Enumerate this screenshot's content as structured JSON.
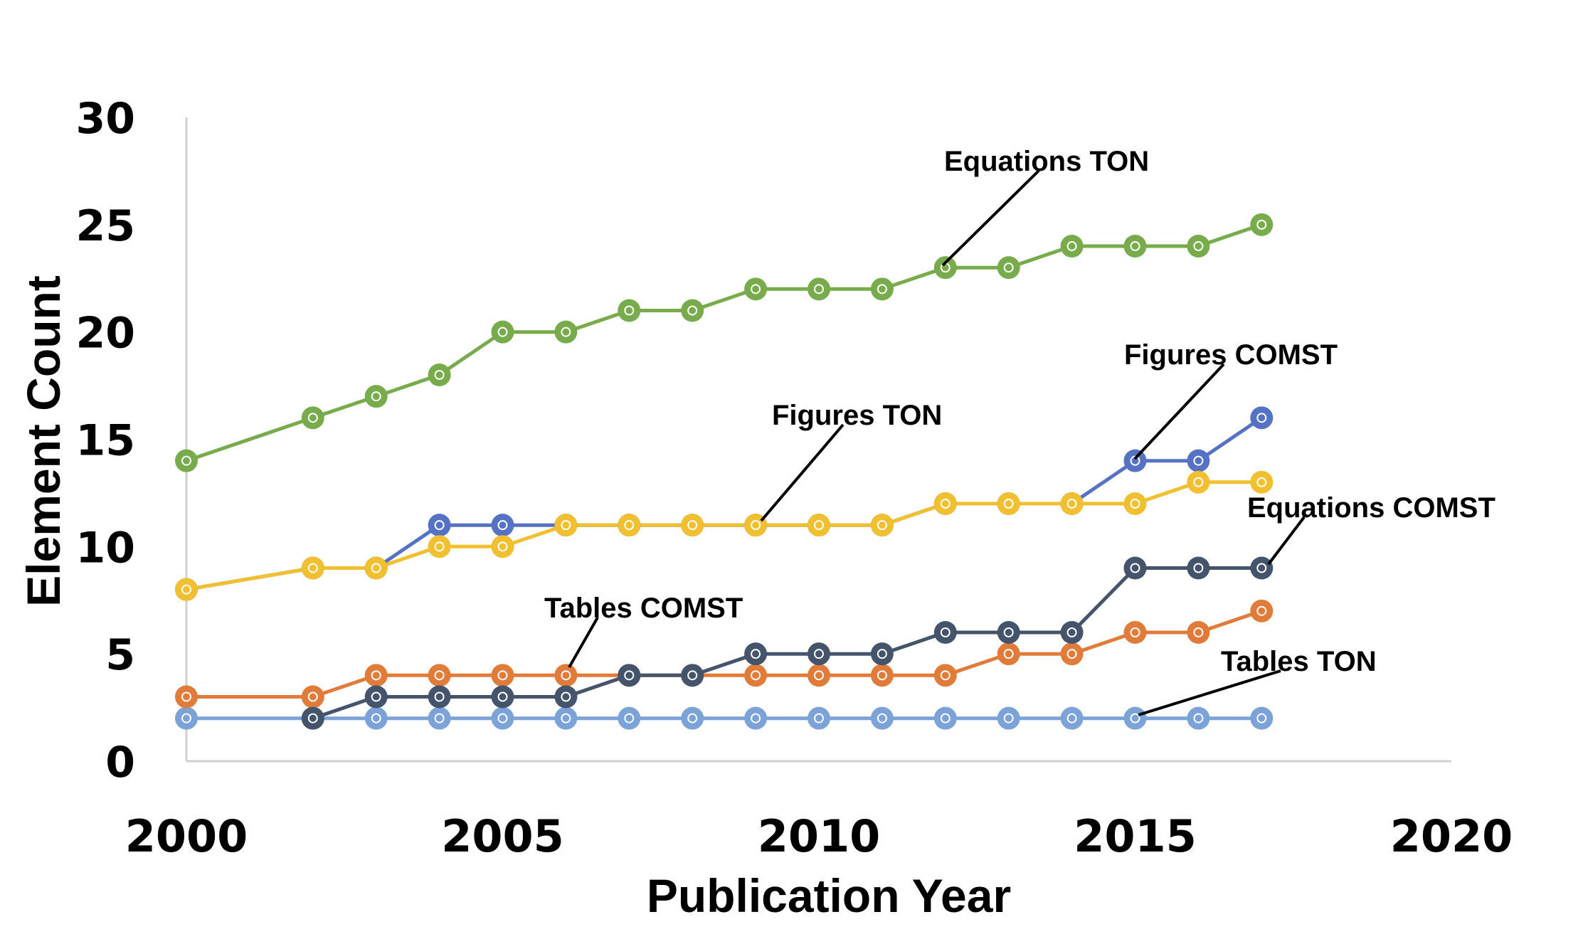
{
  "chart_data": {
    "type": "line",
    "xlabel": "Publication Year",
    "ylabel": "Element Count",
    "xlim": [
      2000,
      2020
    ],
    "ylim": [
      0,
      30
    ],
    "x_ticks": [
      "2000",
      "2005",
      "2010",
      "2015",
      "2020"
    ],
    "y_ticks": [
      "0",
      "5",
      "10",
      "15",
      "20",
      "25",
      "30"
    ],
    "grid": false,
    "series": [
      {
        "key": "tables-ton",
        "color": "#7ba3d8",
        "x": [
          2000,
          2002,
          2003,
          2004,
          2005,
          2006,
          2007,
          2008,
          2009,
          2010,
          2011,
          2012,
          2013,
          2014,
          2015,
          2016,
          2017
        ],
        "values": [
          2,
          2,
          2,
          2,
          2,
          2,
          2,
          2,
          2,
          2,
          2,
          2,
          2,
          2,
          2,
          2,
          2
        ]
      },
      {
        "key": "tables-comst",
        "color": "#e07b39",
        "x": [
          2000,
          2002,
          2003,
          2004,
          2005,
          2006,
          2007,
          2008,
          2009,
          2010,
          2011,
          2012,
          2013,
          2014,
          2015,
          2016,
          2017
        ],
        "values": [
          3,
          3,
          4,
          4,
          4,
          4,
          4,
          4,
          4,
          4,
          4,
          4,
          5,
          5,
          6,
          6,
          7
        ]
      },
      {
        "key": "equations-comst",
        "color": "#44546a",
        "x": [
          2002,
          2003,
          2004,
          2005,
          2006,
          2007,
          2008,
          2009,
          2010,
          2011,
          2012,
          2013,
          2014,
          2015,
          2016,
          2017
        ],
        "values": [
          2,
          3,
          3,
          3,
          3,
          4,
          4,
          5,
          5,
          5,
          6,
          6,
          6,
          9,
          9,
          9
        ]
      },
      {
        "key": "figures-comst",
        "color": "#5572c4",
        "x": [
          2000,
          2002,
          2003,
          2004,
          2005,
          2006,
          2007,
          2008,
          2009,
          2010,
          2011,
          2012,
          2013,
          2014,
          2015,
          2016,
          2017
        ],
        "values": [
          8,
          9,
          9,
          11,
          11,
          11,
          11,
          11,
          11,
          11,
          11,
          12,
          12,
          12,
          14,
          14,
          16
        ]
      },
      {
        "key": "figures-ton",
        "color": "#f0c030",
        "x": [
          2000,
          2002,
          2003,
          2004,
          2005,
          2006,
          2007,
          2008,
          2009,
          2010,
          2011,
          2012,
          2013,
          2014,
          2015,
          2016,
          2017
        ],
        "values": [
          8,
          9,
          9,
          10,
          10,
          11,
          11,
          11,
          11,
          11,
          11,
          12,
          12,
          12,
          12,
          13,
          13
        ]
      },
      {
        "key": "equations-ton",
        "color": "#77ab4b",
        "x": [
          2000,
          2002,
          2003,
          2004,
          2005,
          2006,
          2007,
          2008,
          2009,
          2010,
          2011,
          2012,
          2013,
          2014,
          2015,
          2016,
          2017
        ],
        "values": [
          14,
          16,
          17,
          18,
          20,
          20,
          21,
          21,
          22,
          22,
          22,
          23,
          23,
          24,
          24,
          24,
          25
        ]
      }
    ],
    "annotations": [
      {
        "key": "equations-ton",
        "text": "Equations TON"
      },
      {
        "key": "figures-comst",
        "text": "Figures COMST"
      },
      {
        "key": "figures-ton",
        "text": "Figures TON"
      },
      {
        "key": "equations-comst",
        "text": "Equations COMST"
      },
      {
        "key": "tables-comst",
        "text": "Tables COMST"
      },
      {
        "key": "tables-ton",
        "text": "Tables TON"
      }
    ]
  }
}
